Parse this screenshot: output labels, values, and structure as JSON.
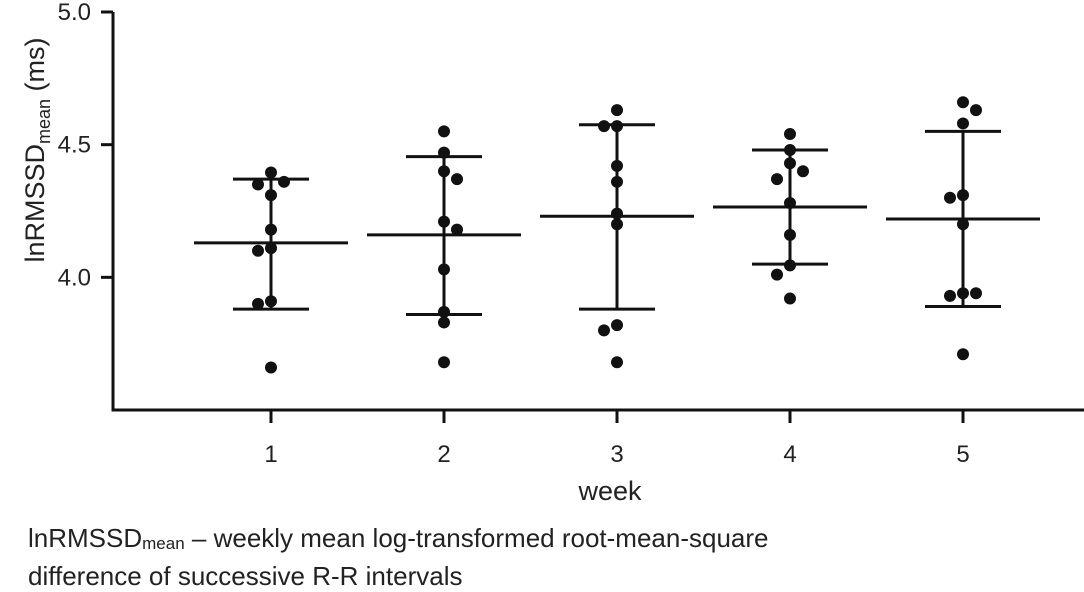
{
  "chart_data": {
    "type": "scatter",
    "xlabel": "week",
    "ylabel_main": "lnRMSSD",
    "ylabel_sub": "mean",
    "ylabel_unit": " (ms)",
    "ylim": [
      3.5,
      5.0
    ],
    "yticks": [
      "4.0",
      "4.5",
      "5.0"
    ],
    "yticks_values": [
      4.0,
      4.5,
      5.0
    ],
    "categories": [
      "1",
      "2",
      "3",
      "4",
      "5"
    ],
    "series": [
      {
        "name": "1",
        "points": [
          4.395,
          4.36,
          4.35,
          4.31,
          4.18,
          4.11,
          4.1,
          3.91,
          3.9,
          3.66
        ],
        "mean": 4.13,
        "upper": 4.37,
        "lower": 3.88
      },
      {
        "name": "2",
        "points": [
          4.55,
          4.47,
          4.37,
          4.4,
          4.21,
          4.18,
          4.03,
          3.87,
          3.83,
          3.68
        ],
        "mean": 4.16,
        "upper": 4.455,
        "lower": 3.86
      },
      {
        "name": "3",
        "points": [
          4.63,
          4.57,
          4.57,
          4.42,
          4.36,
          4.24,
          4.2,
          3.82,
          3.8,
          3.68
        ],
        "mean": 4.23,
        "upper": 4.575,
        "lower": 3.88
      },
      {
        "name": "4",
        "points": [
          4.54,
          4.48,
          4.43,
          4.4,
          4.37,
          4.28,
          4.16,
          4.045,
          4.01,
          3.92
        ],
        "mean": 4.265,
        "upper": 4.48,
        "lower": 4.05
      },
      {
        "name": "5",
        "points": [
          4.66,
          4.63,
          4.58,
          4.3,
          4.31,
          4.2,
          3.94,
          3.93,
          3.94,
          3.71
        ],
        "mean": 4.22,
        "upper": 4.55,
        "lower": 3.89
      }
    ]
  },
  "caption": {
    "abbr_main": "lnRMSSD",
    "abbr_sub": "mean",
    "line1_rest": " – weekly mean log-transformed root-mean-square",
    "line2": "difference of successive R-R intervals"
  }
}
